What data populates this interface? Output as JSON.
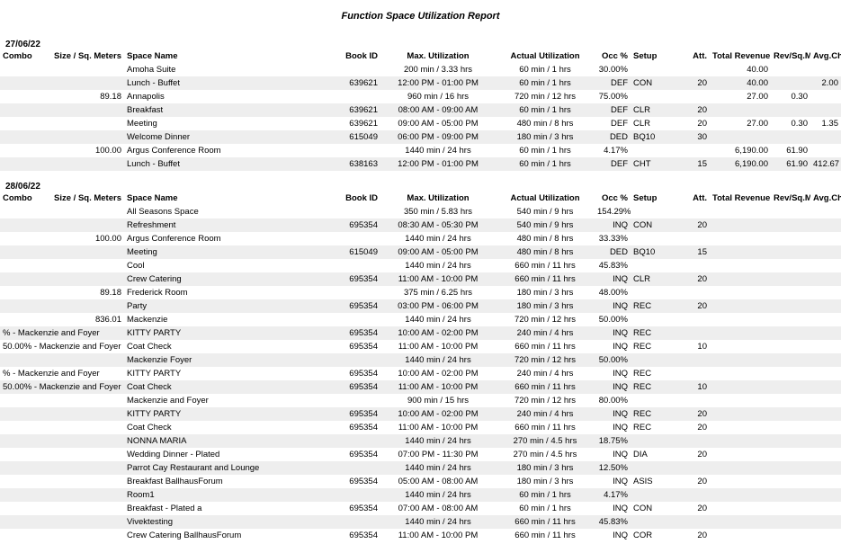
{
  "report_title": "Function Space Utilization Report",
  "columns": [
    "Combo",
    "Size / Sq. Meters",
    "Space Name",
    "Book ID",
    "Max. Utilization",
    "Actual Utilization",
    "Occ %",
    "Setup",
    "Att.",
    "Total Revenue",
    "Rev/Sq.Meter",
    "Avg.Chk"
  ],
  "sections": [
    {
      "date": "27/06/22",
      "rows": [
        {
          "z": 0,
          "combo": "",
          "size": "",
          "space": "Amoha Suite",
          "book": "",
          "maxu": "200 min / 3.33 hrs",
          "actu": "60 min / 1 hrs",
          "occ": "30.00%",
          "setup": "",
          "att": "",
          "rev": "40.00",
          "rsqm": "",
          "avg": ""
        },
        {
          "z": 1,
          "combo": "",
          "size": "",
          "space": "Lunch - Buffet",
          "book": "639621",
          "maxu": "12:00 PM - 01:00 PM",
          "actu": "60 min / 1 hrs",
          "occ": "DEF",
          "setup": "CON",
          "att": "20",
          "rev": "40.00",
          "rsqm": "",
          "avg": "2.00"
        },
        {
          "z": 0,
          "combo": "",
          "size": "89.18",
          "space": "Annapolis",
          "book": "",
          "maxu": "960 min / 16 hrs",
          "actu": "720 min / 12 hrs",
          "occ": "75.00%",
          "setup": "",
          "att": "",
          "rev": "27.00",
          "rsqm": "0.30",
          "avg": ""
        },
        {
          "z": 1,
          "combo": "",
          "size": "",
          "space": "Breakfast",
          "book": "639621",
          "maxu": "08:00 AM - 09:00 AM",
          "actu": "60 min / 1 hrs",
          "occ": "DEF",
          "setup": "CLR",
          "att": "20",
          "rev": "",
          "rsqm": "",
          "avg": ""
        },
        {
          "z": 0,
          "combo": "",
          "size": "",
          "space": "Meeting",
          "book": "639621",
          "maxu": "09:00 AM - 05:00 PM",
          "actu": "480 min / 8 hrs",
          "occ": "DEF",
          "setup": "CLR",
          "att": "20",
          "rev": "27.00",
          "rsqm": "0.30",
          "avg": "1.35"
        },
        {
          "z": 1,
          "combo": "",
          "size": "",
          "space": "Welcome Dinner",
          "book": "615049",
          "maxu": "06:00 PM - 09:00 PM",
          "actu": "180 min / 3 hrs",
          "occ": "DED",
          "setup": "BQ10",
          "att": "30",
          "rev": "",
          "rsqm": "",
          "avg": ""
        },
        {
          "z": 0,
          "combo": "",
          "size": "100.00",
          "space": "Argus Conference Room",
          "book": "",
          "maxu": "1440 min / 24 hrs",
          "actu": "60 min / 1 hrs",
          "occ": "4.17%",
          "setup": "",
          "att": "",
          "rev": "6,190.00",
          "rsqm": "61.90",
          "avg": ""
        },
        {
          "z": 1,
          "combo": "",
          "size": "",
          "space": "Lunch - Buffet",
          "book": "638163",
          "maxu": "12:00 PM - 01:00 PM",
          "actu": "60 min / 1 hrs",
          "occ": "DEF",
          "setup": "CHT",
          "att": "15",
          "rev": "6,190.00",
          "rsqm": "61.90",
          "avg": "412.67"
        }
      ]
    },
    {
      "date": "28/06/22",
      "rows": [
        {
          "z": 0,
          "combo": "",
          "size": "",
          "space": "All Seasons Space",
          "book": "",
          "maxu": "350 min / 5.83 hrs",
          "actu": "540 min / 9 hrs",
          "occ": "154.29%",
          "setup": "",
          "att": "",
          "rev": "",
          "rsqm": "",
          "avg": ""
        },
        {
          "z": 1,
          "combo": "",
          "size": "",
          "space": "Refreshment",
          "book": "695354",
          "maxu": "08:30 AM - 05:30 PM",
          "actu": "540 min / 9 hrs",
          "occ": "INQ",
          "setup": "CON",
          "att": "20",
          "rev": "",
          "rsqm": "",
          "avg": ""
        },
        {
          "z": 0,
          "combo": "",
          "size": "100.00",
          "space": "Argus Conference Room",
          "book": "",
          "maxu": "1440 min / 24 hrs",
          "actu": "480 min / 8 hrs",
          "occ": "33.33%",
          "setup": "",
          "att": "",
          "rev": "",
          "rsqm": "",
          "avg": ""
        },
        {
          "z": 1,
          "combo": "",
          "size": "",
          "space": "Meeting",
          "book": "615049",
          "maxu": "09:00 AM - 05:00 PM",
          "actu": "480 min / 8 hrs",
          "occ": "DED",
          "setup": "BQ10",
          "att": "15",
          "rev": "",
          "rsqm": "",
          "avg": ""
        },
        {
          "z": 0,
          "combo": "",
          "size": "",
          "space": "Cool",
          "book": "",
          "maxu": "1440 min / 24 hrs",
          "actu": "660 min / 11 hrs",
          "occ": "45.83%",
          "setup": "",
          "att": "",
          "rev": "",
          "rsqm": "",
          "avg": ""
        },
        {
          "z": 1,
          "combo": "",
          "size": "",
          "space": "Crew Catering",
          "book": "695354",
          "maxu": "11:00 AM - 10:00 PM",
          "actu": "660 min / 11 hrs",
          "occ": "INQ",
          "setup": "CLR",
          "att": "20",
          "rev": "",
          "rsqm": "",
          "avg": ""
        },
        {
          "z": 0,
          "combo": "",
          "size": "89.18",
          "space": "Frederick Room",
          "book": "",
          "maxu": "375 min / 6.25 hrs",
          "actu": "180 min / 3 hrs",
          "occ": "48.00%",
          "setup": "",
          "att": "",
          "rev": "",
          "rsqm": "",
          "avg": ""
        },
        {
          "z": 1,
          "combo": "",
          "size": "",
          "space": "Party",
          "book": "695354",
          "maxu": "03:00 PM - 06:00 PM",
          "actu": "180 min / 3 hrs",
          "occ": "INQ",
          "setup": "REC",
          "att": "20",
          "rev": "",
          "rsqm": "",
          "avg": ""
        },
        {
          "z": 0,
          "combo": "",
          "size": "836.01",
          "space": "Mackenzie",
          "book": "",
          "maxu": "1440 min / 24 hrs",
          "actu": "720 min / 12 hrs",
          "occ": "50.00%",
          "setup": "",
          "att": "",
          "rev": "",
          "rsqm": "",
          "avg": ""
        },
        {
          "z": 1,
          "combo": "% - Mackenzie and Foyer",
          "size": "",
          "space": "KITTY PARTY",
          "book": "695354",
          "maxu": "10:00 AM - 02:00 PM",
          "actu": "240 min / 4 hrs",
          "occ": "INQ",
          "setup": "REC",
          "att": "",
          "rev": "",
          "rsqm": "",
          "avg": ""
        },
        {
          "z": 0,
          "combo": "50.00% - Mackenzie and Foyer",
          "size": "",
          "space": "Coat Check",
          "book": "695354",
          "maxu": "11:00 AM - 10:00 PM",
          "actu": "660 min / 11 hrs",
          "occ": "INQ",
          "setup": "REC",
          "att": "10",
          "rev": "",
          "rsqm": "",
          "avg": ""
        },
        {
          "z": 1,
          "combo": "",
          "size": "",
          "space": "Mackenzie Foyer",
          "book": "",
          "maxu": "1440 min / 24 hrs",
          "actu": "720 min / 12 hrs",
          "occ": "50.00%",
          "setup": "",
          "att": "",
          "rev": "",
          "rsqm": "",
          "avg": ""
        },
        {
          "z": 0,
          "combo": "% - Mackenzie and Foyer",
          "size": "",
          "space": "KITTY PARTY",
          "book": "695354",
          "maxu": "10:00 AM - 02:00 PM",
          "actu": "240 min / 4 hrs",
          "occ": "INQ",
          "setup": "REC",
          "att": "",
          "rev": "",
          "rsqm": "",
          "avg": ""
        },
        {
          "z": 1,
          "combo": "50.00% - Mackenzie and Foyer",
          "size": "",
          "space": "Coat Check",
          "book": "695354",
          "maxu": "11:00 AM - 10:00 PM",
          "actu": "660 min / 11 hrs",
          "occ": "INQ",
          "setup": "REC",
          "att": "10",
          "rev": "",
          "rsqm": "",
          "avg": ""
        },
        {
          "z": 0,
          "combo": "",
          "size": "",
          "space": "Mackenzie and Foyer",
          "book": "",
          "maxu": "900 min / 15 hrs",
          "actu": "720 min / 12 hrs",
          "occ": "80.00%",
          "setup": "",
          "att": "",
          "rev": "",
          "rsqm": "",
          "avg": ""
        },
        {
          "z": 1,
          "combo": "",
          "size": "",
          "space": "KITTY PARTY",
          "book": "695354",
          "maxu": "10:00 AM - 02:00 PM",
          "actu": "240 min / 4 hrs",
          "occ": "INQ",
          "setup": "REC",
          "att": "20",
          "rev": "",
          "rsqm": "",
          "avg": ""
        },
        {
          "z": 0,
          "combo": "",
          "size": "",
          "space": "Coat Check",
          "book": "695354",
          "maxu": "11:00 AM - 10:00 PM",
          "actu": "660 min / 11 hrs",
          "occ": "INQ",
          "setup": "REC",
          "att": "20",
          "rev": "",
          "rsqm": "",
          "avg": ""
        },
        {
          "z": 1,
          "combo": "",
          "size": "",
          "space": "NONNA MARIA",
          "book": "",
          "maxu": "1440 min / 24 hrs",
          "actu": "270 min / 4.5 hrs",
          "occ": "18.75%",
          "setup": "",
          "att": "",
          "rev": "",
          "rsqm": "",
          "avg": ""
        },
        {
          "z": 0,
          "combo": "",
          "size": "",
          "space": "Wedding Dinner - Plated",
          "book": "695354",
          "maxu": "07:00 PM - 11:30 PM",
          "actu": "270 min / 4.5 hrs",
          "occ": "INQ",
          "setup": "DIA",
          "att": "20",
          "rev": "",
          "rsqm": "",
          "avg": ""
        },
        {
          "z": 1,
          "combo": "",
          "size": "",
          "space": "Parrot Cay Restaurant and Lounge",
          "book": "",
          "maxu": "1440 min / 24 hrs",
          "actu": "180 min / 3 hrs",
          "occ": "12.50%",
          "setup": "",
          "att": "",
          "rev": "",
          "rsqm": "",
          "avg": ""
        },
        {
          "z": 0,
          "combo": "",
          "size": "",
          "space": "Breakfast BallhausForum",
          "book": "695354",
          "maxu": "05:00 AM - 08:00 AM",
          "actu": "180 min / 3 hrs",
          "occ": "INQ",
          "setup": "ASIS",
          "att": "20",
          "rev": "",
          "rsqm": "",
          "avg": ""
        },
        {
          "z": 1,
          "combo": "",
          "size": "",
          "space": "Room1",
          "book": "",
          "maxu": "1440 min / 24 hrs",
          "actu": "60 min / 1 hrs",
          "occ": "4.17%",
          "setup": "",
          "att": "",
          "rev": "",
          "rsqm": "",
          "avg": ""
        },
        {
          "z": 0,
          "combo": "",
          "size": "",
          "space": "Breakfast - Plated a",
          "book": "695354",
          "maxu": "07:00 AM - 08:00 AM",
          "actu": "60 min / 1 hrs",
          "occ": "INQ",
          "setup": "CON",
          "att": "20",
          "rev": "",
          "rsqm": "",
          "avg": ""
        },
        {
          "z": 1,
          "combo": "",
          "size": "",
          "space": "Vivektesting",
          "book": "",
          "maxu": "1440 min / 24 hrs",
          "actu": "660 min / 11 hrs",
          "occ": "45.83%",
          "setup": "",
          "att": "",
          "rev": "",
          "rsqm": "",
          "avg": ""
        },
        {
          "z": 0,
          "combo": "",
          "size": "",
          "space": "Crew Catering BallhausForum",
          "book": "695354",
          "maxu": "11:00 AM - 10:00 PM",
          "actu": "660 min / 11 hrs",
          "occ": "INQ",
          "setup": "COR",
          "att": "20",
          "rev": "",
          "rsqm": "",
          "avg": ""
        }
      ]
    }
  ],
  "align": {
    "combo": "l",
    "size": "r",
    "space": "l",
    "book": "r",
    "maxu": "c",
    "actu": "c",
    "occ": "r",
    "setup": "l",
    "att": "r",
    "rev": "r",
    "rsqm": "r",
    "avg": "r"
  },
  "colors": {
    "zebra": "#eeeeee",
    "bg": "#ffffff",
    "text": "#000000"
  }
}
